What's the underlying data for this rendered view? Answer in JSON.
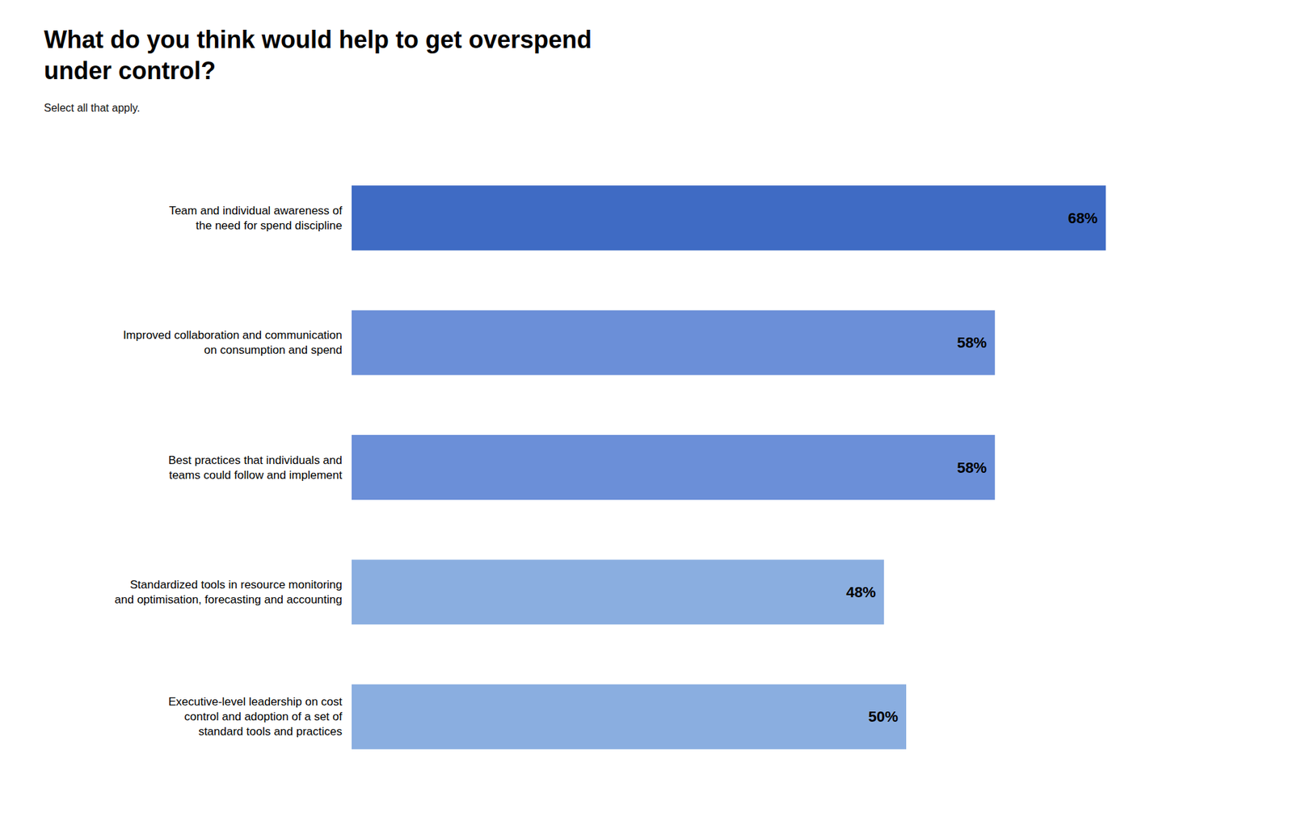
{
  "chart_data": {
    "type": "bar",
    "orientation": "horizontal",
    "title": "What do you think would help to get overspend\nunder control?",
    "subtitle": "Select all that apply.",
    "categories": [
      "Team and individual awareness of\nthe need for spend discipline",
      "Improved collaboration and communication\non consumption and spend",
      "Best practices that individuals and\nteams could follow and implement",
      "Standardized tools in resource monitoring\nand optimisation, forecasting and accounting",
      "Executive-level leadership on cost\ncontrol and adoption of a set of\nstandard tools and practices"
    ],
    "values": [
      68,
      58,
      58,
      48,
      50
    ],
    "value_labels": [
      "68%",
      "58%",
      "58%",
      "48%",
      "50%"
    ],
    "colors": [
      "#3F6BC4",
      "#6B8FD8",
      "#6B8FD8",
      "#8AAEE0",
      "#8AAEE0"
    ],
    "xlim": [
      0,
      80
    ],
    "data_labels": true,
    "tick_labels": "y",
    "grid": false
  }
}
